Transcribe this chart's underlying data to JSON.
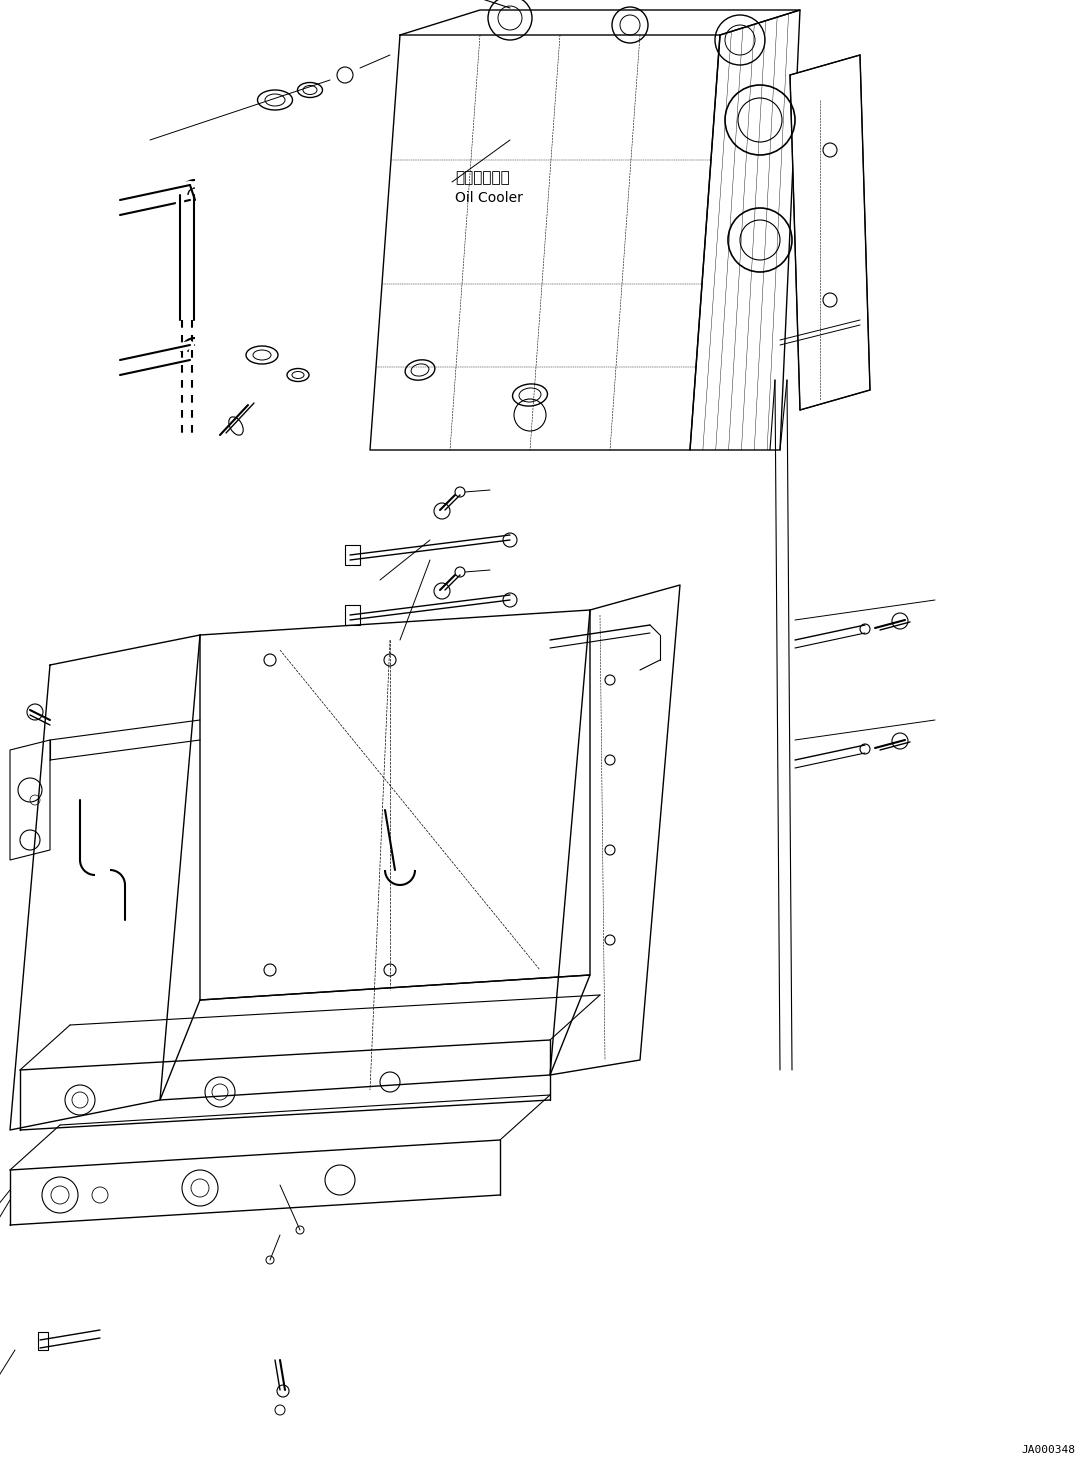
{
  "background_color": "#ffffff",
  "line_color": "#000000",
  "fig_width": 10.92,
  "fig_height": 14.61,
  "dpi": 100,
  "watermark": "JA000348",
  "label_oil_cooler_jp": "オイルクーラ",
  "label_oil_cooler_en": "Oil Cooler"
}
